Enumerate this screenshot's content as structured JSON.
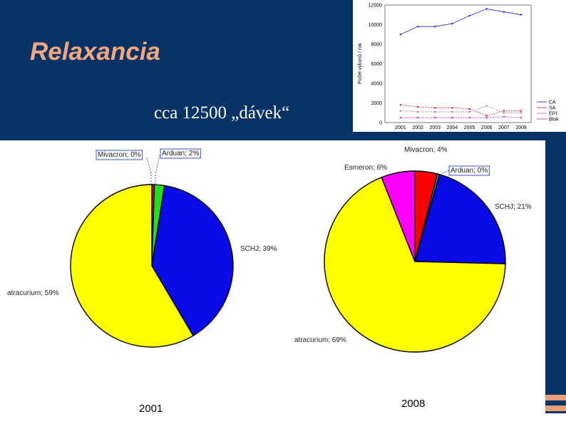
{
  "slide": {
    "title": "Relaxancia",
    "subtitle": "cca 12500 „dávek“",
    "accent_color": "#f4a77c",
    "background_color": "#063366"
  },
  "chart_data": [
    {
      "type": "line",
      "x": [
        "2001",
        "2002",
        "2003",
        "2004",
        "2005",
        "2006",
        "2007",
        "2008"
      ],
      "ylabel": "Počet výkonů / rok",
      "ylim": [
        0,
        12000
      ],
      "yticks": [
        "0",
        "2000",
        "4000",
        "6000",
        "8000",
        "10000",
        "12000"
      ],
      "legend_position": "right",
      "series": [
        {
          "name": "CA",
          "color": "#3b3bd9",
          "values": [
            9000,
            9800,
            9800,
            10100,
            10900,
            11600,
            11300,
            11000
          ]
        },
        {
          "name": "SA",
          "color": "#d93b3b",
          "values": [
            1800,
            1600,
            1500,
            1500,
            1400,
            700,
            1200,
            1200
          ]
        },
        {
          "name": "EPI",
          "color": "#c080c0",
          "values": [
            1200,
            1100,
            1100,
            1100,
            1100,
            1700,
            1000,
            1000
          ]
        },
        {
          "name": "Blok",
          "color": "#e040e0",
          "values": [
            500,
            500,
            500,
            500,
            500,
            500,
            600,
            500
          ]
        }
      ]
    },
    {
      "type": "pie",
      "year_label": "2001",
      "slices": [
        {
          "label": "Mivacron; 0%",
          "value": 0.5,
          "color": "#ff0000"
        },
        {
          "label": "Arduan; 2%",
          "value": 2,
          "color": "#22dd22"
        },
        {
          "label": "SCHJ; 39%",
          "value": 39,
          "color": "#0a0ae6"
        },
        {
          "label": "atracurium; 59%",
          "value": 58.5,
          "color": "#ffff00"
        }
      ]
    },
    {
      "type": "pie",
      "year_label": "2008",
      "slices": [
        {
          "label": "Mivacron; 4%",
          "value": 4,
          "color": "#ff0000"
        },
        {
          "label": "Arduan; 0%",
          "value": 0.4,
          "color": "#22aa22"
        },
        {
          "label": "SCHJ; 21%",
          "value": 21,
          "color": "#0a0ae6"
        },
        {
          "label": "atracurium; 69%",
          "value": 68.6,
          "color": "#ffff00"
        },
        {
          "label": "Esmeron; 6%",
          "value": 6,
          "color": "#ff00ff"
        }
      ]
    }
  ]
}
